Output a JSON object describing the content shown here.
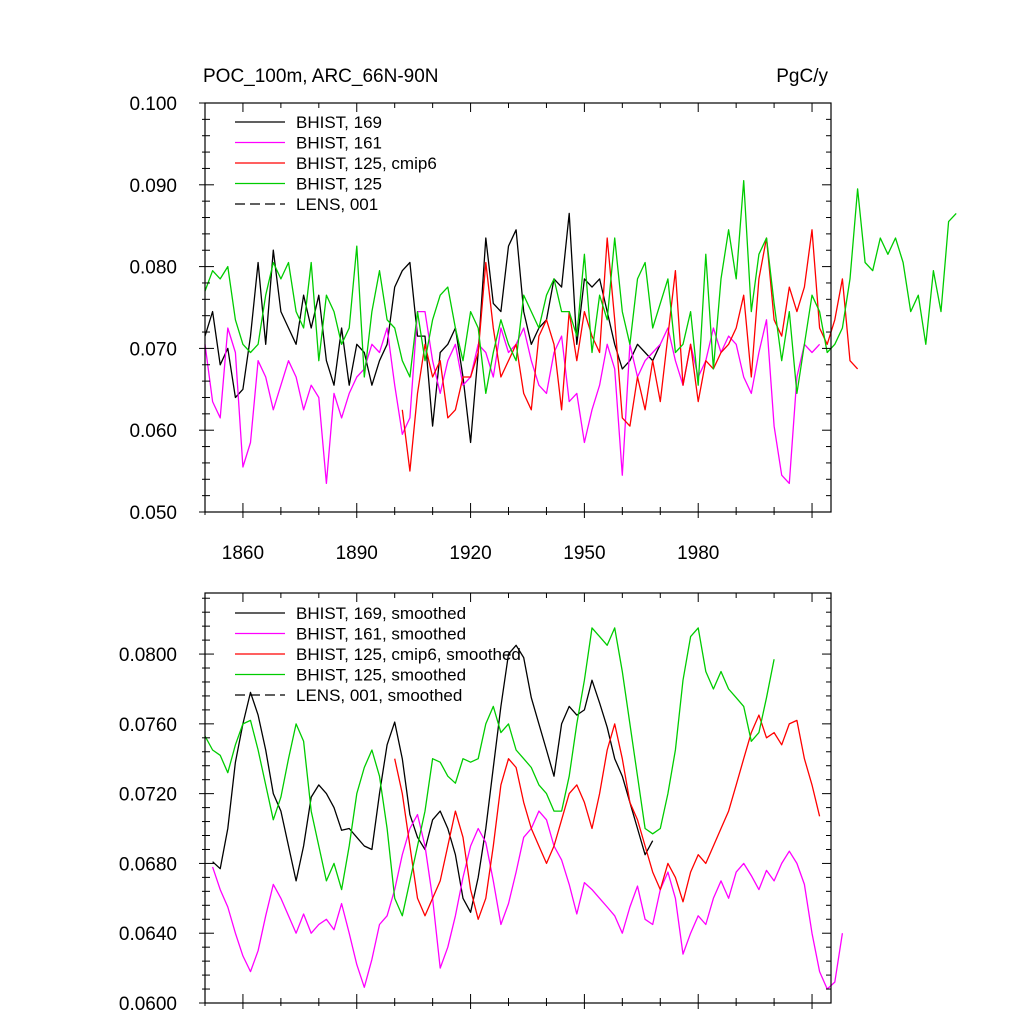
{
  "chart_data": [
    {
      "type": "line",
      "title": "POC_100m, ARC_66N-90N",
      "units": "PgC/y",
      "xlim": [
        1850,
        2015
      ],
      "ylim": [
        0.05,
        0.1
      ],
      "yticks": [
        "0.050",
        "0.060",
        "0.070",
        "0.080",
        "0.090",
        "0.100"
      ],
      "xticks": [
        "1860",
        "1890",
        "1920",
        "1950",
        "1980"
      ],
      "series": [
        {
          "name": "BHIST, 169",
          "color": "#000000",
          "dash": false,
          "x0": 1850,
          "step": 2,
          "values": [
            0.0715,
            0.0745,
            0.068,
            0.07,
            0.064,
            0.065,
            0.0715,
            0.0805,
            0.0705,
            0.082,
            0.0745,
            0.0725,
            0.0705,
            0.0765,
            0.0725,
            0.0765,
            0.0685,
            0.0655,
            0.0725,
            0.0655,
            0.0705,
            0.0695,
            0.0655,
            0.0685,
            0.0705,
            0.0775,
            0.0795,
            0.0805,
            0.0715,
            0.0715,
            0.0605,
            0.0695,
            0.0705,
            0.0725,
            0.0665,
            0.0585,
            0.0695,
            0.0835,
            0.0755,
            0.0745,
            0.0825,
            0.0845,
            0.0745,
            0.0705,
            0.0725,
            0.0735,
            0.0785,
            0.0775,
            0.0865,
            0.0705,
            0.0785,
            0.0775,
            0.0785,
            0.0745,
            0.0705,
            0.0675,
            0.0685,
            0.0705,
            0.0695,
            0.0685,
            0.0705
          ]
        },
        {
          "name": "BHIST, 161",
          "color": "#ff00ff",
          "dash": false,
          "x0": 1850,
          "step": 2,
          "values": [
            0.0705,
            0.0635,
            0.0615,
            0.0725,
            0.0695,
            0.0555,
            0.0585,
            0.0685,
            0.0665,
            0.0625,
            0.0655,
            0.0685,
            0.0665,
            0.0625,
            0.0655,
            0.064,
            0.0535,
            0.0645,
            0.0615,
            0.0645,
            0.0665,
            0.0675,
            0.0705,
            0.0695,
            0.0725,
            0.0655,
            0.0595,
            0.0615,
            0.0745,
            0.0745,
            0.0685,
            0.0645,
            0.0685,
            0.0705,
            0.0655,
            0.0665,
            0.0705,
            0.0695,
            0.0665,
            0.0725,
            0.0695,
            0.0705,
            0.0725,
            0.0685,
            0.0655,
            0.0645,
            0.0695,
            0.0715,
            0.0635,
            0.0645,
            0.0585,
            0.0625,
            0.0655,
            0.0705,
            0.0675,
            0.0545,
            0.0705,
            0.0665,
            0.0685,
            0.0695,
            0.0705,
            0.0725,
            0.0685,
            0.0655,
            0.0705,
            0.0665,
            0.0685,
            0.0725,
            0.0695,
            0.0715,
            0.0705,
            0.0665,
            0.0645,
            0.0695,
            0.0735,
            0.0605,
            0.0545,
            0.0535,
            0.0665,
            0.0705,
            0.0695,
            0.0705
          ]
        },
        {
          "name": "BHIST, 125, cmip6",
          "color": "#ff0000",
          "dash": false,
          "x0": 1902,
          "step": 2,
          "values": [
            0.0625,
            0.055,
            0.0645,
            0.0705,
            0.0665,
            0.0685,
            0.0615,
            0.0625,
            0.0665,
            0.0665,
            0.0695,
            0.0805,
            0.0725,
            0.0665,
            0.0685,
            0.0705,
            0.0645,
            0.0625,
            0.0715,
            0.0735,
            0.0705,
            0.0625,
            0.0745,
            0.0685,
            0.0745,
            0.0715,
            0.0695,
            0.0835,
            0.0735,
            0.0615,
            0.0605,
            0.0665,
            0.0625,
            0.0685,
            0.0635,
            0.0715,
            0.0795,
            0.0655,
            0.0705,
            0.0635,
            0.0685,
            0.0675,
            0.0695,
            0.0705,
            0.0725,
            0.0765,
            0.0665,
            0.0785,
            0.0835,
            0.0735,
            0.0715,
            0.0775,
            0.0745,
            0.0775,
            0.0845,
            0.0725,
            0.0705,
            0.0735,
            0.0785,
            0.0685,
            0.0675
          ]
        },
        {
          "name": "BHIST, 125",
          "color": "#00cc00",
          "dash": false,
          "x0": 1850,
          "step": 2,
          "values": [
            0.077,
            0.0795,
            0.0785,
            0.08,
            0.0735,
            0.0705,
            0.0695,
            0.0705,
            0.0765,
            0.0805,
            0.0785,
            0.0805,
            0.0745,
            0.0725,
            0.0805,
            0.0685,
            0.0765,
            0.0745,
            0.0705,
            0.0725,
            0.0825,
            0.0665,
            0.0745,
            0.0795,
            0.0735,
            0.0725,
            0.0685,
            0.0665,
            0.0745,
            0.0685,
            0.0735,
            0.0765,
            0.0775,
            0.0725,
            0.0685,
            0.0745,
            0.0725,
            0.0645,
            0.0695,
            0.0735,
            0.0705,
            0.0685,
            0.0765,
            0.0745,
            0.0725,
            0.0765,
            0.0785,
            0.0745,
            0.0745,
            0.0715,
            0.0815,
            0.0695,
            0.0765,
            0.0735,
            0.0835,
            0.0745,
            0.0705,
            0.0785,
            0.0805,
            0.0725,
            0.0755,
            0.0785,
            0.0695,
            0.0705,
            0.0745,
            0.0655,
            0.0815,
            0.0675,
            0.0785,
            0.0845,
            0.0785,
            0.0905,
            0.0745,
            0.0815,
            0.0835,
            0.0755,
            0.0685,
            0.0745,
            0.0645,
            0.0705,
            0.0765,
            0.0745,
            0.0695,
            0.0705,
            0.0725,
            0.0785,
            0.0895,
            0.0805,
            0.0795,
            0.0835,
            0.0815,
            0.0835,
            0.0805,
            0.0745,
            0.0765,
            0.0705,
            0.0795,
            0.0745,
            0.0855,
            0.0865
          ]
        }
      ],
      "legend": [
        {
          "label": "BHIST, 169",
          "color": "#000000",
          "dash": false
        },
        {
          "label": "BHIST, 161",
          "color": "#ff00ff",
          "dash": false
        },
        {
          "label": "BHIST, 125, cmip6",
          "color": "#ff0000",
          "dash": false
        },
        {
          "label": "BHIST, 125",
          "color": "#00cc00",
          "dash": false
        },
        {
          "label": "LENS, 001",
          "color": "#000000",
          "dash": true
        }
      ]
    },
    {
      "type": "line",
      "title": "",
      "xlim": [
        1850,
        2015
      ],
      "ylim": [
        0.06,
        0.0835
      ],
      "yticks": [
        "0.0600",
        "0.0640",
        "0.0680",
        "0.0720",
        "0.0760",
        "0.0800"
      ],
      "xticks": [],
      "series": [
        {
          "name": "BHIST, 169, smoothed",
          "color": "#000000",
          "dash": false,
          "x0": 1852,
          "step": 2,
          "values": [
            0.0681,
            0.0677,
            0.07,
            0.0738,
            0.076,
            0.0778,
            0.0765,
            0.0745,
            0.072,
            0.071,
            0.069,
            0.067,
            0.069,
            0.0718,
            0.0725,
            0.072,
            0.0712,
            0.0699,
            0.07,
            0.0695,
            0.069,
            0.0688,
            0.072,
            0.0748,
            0.0761,
            0.074,
            0.0708,
            0.0695,
            0.0688,
            0.0705,
            0.071,
            0.07,
            0.0685,
            0.066,
            0.0652,
            0.0672,
            0.07,
            0.0735,
            0.077,
            0.08,
            0.0805,
            0.0798,
            0.0775,
            0.076,
            0.0745,
            0.073,
            0.076,
            0.077,
            0.0765,
            0.0768,
            0.0785,
            0.0772,
            0.0758,
            0.074,
            0.073,
            0.0715,
            0.07,
            0.0685,
            0.0693
          ]
        },
        {
          "name": "BHIST, 161, smoothed",
          "color": "#ff00ff",
          "dash": false,
          "x0": 1852,
          "step": 2,
          "values": [
            0.0678,
            0.0665,
            0.0655,
            0.064,
            0.0627,
            0.0618,
            0.063,
            0.065,
            0.0668,
            0.066,
            0.065,
            0.064,
            0.0651,
            0.064,
            0.0645,
            0.0648,
            0.0642,
            0.0657,
            0.064,
            0.0622,
            0.0609,
            0.0625,
            0.0645,
            0.065,
            0.0665,
            0.0685,
            0.07,
            0.0708,
            0.069,
            0.066,
            0.062,
            0.0632,
            0.065,
            0.0672,
            0.069,
            0.07,
            0.0692,
            0.067,
            0.0645,
            0.0657,
            0.0675,
            0.0695,
            0.07,
            0.071,
            0.0705,
            0.069,
            0.0682,
            0.0668,
            0.0651,
            0.0669,
            0.0665,
            0.066,
            0.0655,
            0.065,
            0.064,
            0.0655,
            0.0667,
            0.0648,
            0.0645,
            0.0665,
            0.0675,
            0.066,
            0.0628,
            0.064,
            0.065,
            0.0645,
            0.066,
            0.067,
            0.066,
            0.0675,
            0.068,
            0.0673,
            0.0665,
            0.0676,
            0.067,
            0.068,
            0.0687,
            0.068,
            0.0668,
            0.064,
            0.0618,
            0.0608,
            0.0612,
            0.064
          ]
        },
        {
          "name": "BHIST, 125, cmip6, smoothed",
          "color": "#ff0000",
          "dash": false,
          "x0": 1900,
          "step": 2,
          "values": [
            0.074,
            0.072,
            0.069,
            0.066,
            0.065,
            0.066,
            0.067,
            0.069,
            0.071,
            0.0695,
            0.0665,
            0.0648,
            0.066,
            0.069,
            0.0725,
            0.074,
            0.0735,
            0.0715,
            0.07,
            0.069,
            0.068,
            0.069,
            0.0705,
            0.072,
            0.0725,
            0.0715,
            0.07,
            0.072,
            0.0745,
            0.076,
            0.074,
            0.0715,
            0.0705,
            0.069,
            0.0675,
            0.0665,
            0.068,
            0.0672,
            0.0658,
            0.0675,
            0.0685,
            0.068,
            0.069,
            0.07,
            0.071,
            0.0725,
            0.074,
            0.0755,
            0.0765,
            0.0752,
            0.0755,
            0.0748,
            0.076,
            0.0762,
            0.074,
            0.0725,
            0.0707
          ]
        },
        {
          "name": "BHIST, 125, smoothed",
          "color": "#00cc00",
          "dash": false,
          "x0": 1850,
          "step": 2,
          "values": [
            0.0753,
            0.0745,
            0.0742,
            0.0732,
            0.0748,
            0.076,
            0.0762,
            0.0745,
            0.0725,
            0.0705,
            0.0718,
            0.074,
            0.076,
            0.075,
            0.071,
            0.069,
            0.067,
            0.068,
            0.0665,
            0.069,
            0.072,
            0.0735,
            0.0745,
            0.073,
            0.07,
            0.066,
            0.065,
            0.067,
            0.069,
            0.071,
            0.074,
            0.0738,
            0.073,
            0.0726,
            0.074,
            0.0738,
            0.074,
            0.076,
            0.077,
            0.0755,
            0.076,
            0.0745,
            0.074,
            0.0735,
            0.0725,
            0.072,
            0.071,
            0.071,
            0.073,
            0.076,
            0.0785,
            0.0815,
            0.081,
            0.0805,
            0.0815,
            0.079,
            0.076,
            0.073,
            0.07,
            0.0697,
            0.07,
            0.072,
            0.0745,
            0.0785,
            0.081,
            0.0815,
            0.079,
            0.078,
            0.079,
            0.078,
            0.0775,
            0.077,
            0.075,
            0.0755,
            0.0775,
            0.0797
          ]
        }
      ],
      "legend": [
        {
          "label": "BHIST, 169, smoothed",
          "color": "#000000",
          "dash": false
        },
        {
          "label": "BHIST, 161, smoothed",
          "color": "#ff00ff",
          "dash": false
        },
        {
          "label": "BHIST, 125, cmip6, smoothed",
          "color": "#ff0000",
          "dash": false
        },
        {
          "label": "BHIST, 125, smoothed",
          "color": "#00cc00",
          "dash": false
        },
        {
          "label": "LENS, 001, smoothed",
          "color": "#000000",
          "dash": true
        }
      ]
    }
  ]
}
